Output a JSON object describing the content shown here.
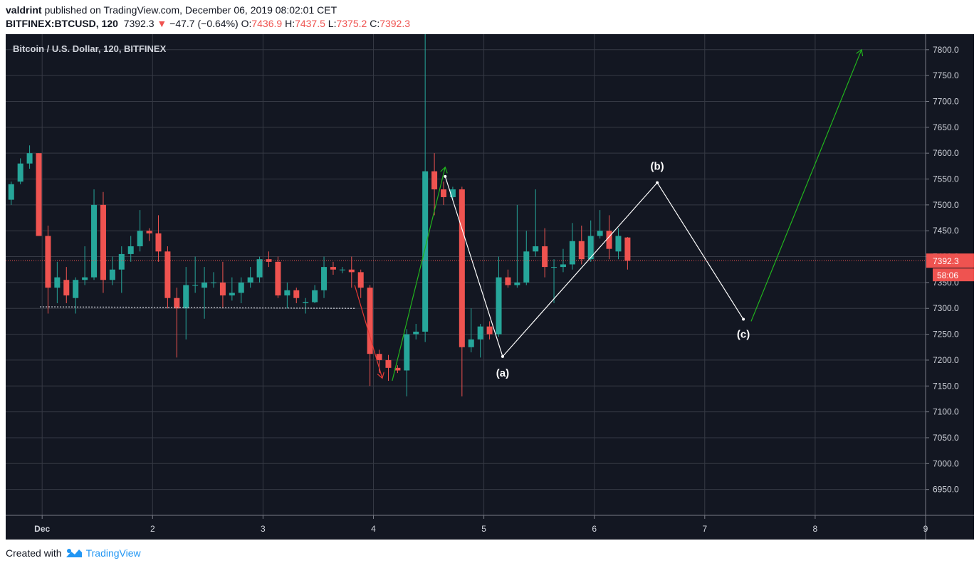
{
  "header": {
    "author": "valdrint",
    "published_text": "published on TradingView.com, December 06, 2019 08:02:01 CET",
    "symbol": "BITFINEX:BTCUSD, 120",
    "last": "7392.3",
    "change_arrow": "▼",
    "change": "−47.7 (−0.64%)",
    "o_label": "O:",
    "o": "7436.9",
    "h_label": "H:",
    "h": "7437.5",
    "l_label": "L:",
    "l": "7375.2",
    "c_label": "C:",
    "c": "7392.3"
  },
  "chart_data": {
    "type": "candlestick",
    "title": "Bitcoin / U.S. Dollar, 120, BITFINEX",
    "ylim": [
      6900,
      7830
    ],
    "xlim": [
      0.67,
      9.0
    ],
    "y_ticks": [
      "6950.0",
      "7000.0",
      "7050.0",
      "7100.0",
      "7150.0",
      "7200.0",
      "7250.0",
      "7300.0",
      "7350.0",
      "7400.0",
      "7450.0",
      "7500.0",
      "7550.0",
      "7600.0",
      "7650.0",
      "7700.0",
      "7750.0",
      "7800.0"
    ],
    "x_ticks": [
      {
        "x": 1,
        "label": "Dec"
      },
      {
        "x": 2,
        "label": "2"
      },
      {
        "x": 3,
        "label": "3"
      },
      {
        "x": 4,
        "label": "4"
      },
      {
        "x": 5,
        "label": "5"
      },
      {
        "x": 6,
        "label": "6"
      },
      {
        "x": 7,
        "label": "7"
      },
      {
        "x": 8,
        "label": "8"
      },
      {
        "x": 9,
        "label": "9"
      }
    ],
    "bar_interval_days": 0.0833,
    "first_bar_day": 0.72,
    "candles": [
      [
        7510,
        7540,
        7500,
        7545
      ],
      [
        7545,
        7580,
        7540,
        7590
      ],
      [
        7580,
        7600,
        7570,
        7615
      ],
      [
        7600,
        7440,
        7440,
        7600
      ],
      [
        7440,
        7340,
        7290,
        7460
      ],
      [
        7340,
        7360,
        7310,
        7390
      ],
      [
        7355,
        7325,
        7310,
        7380
      ],
      [
        7320,
        7355,
        7290,
        7360
      ],
      [
        7355,
        7360,
        7345,
        7420
      ],
      [
        7360,
        7500,
        7355,
        7530
      ],
      [
        7500,
        7355,
        7330,
        7525
      ],
      [
        7355,
        7375,
        7345,
        7400
      ],
      [
        7375,
        7405,
        7330,
        7420
      ],
      [
        7405,
        7420,
        7390,
        7440
      ],
      [
        7420,
        7450,
        7410,
        7490
      ],
      [
        7450,
        7445,
        7430,
        7455
      ],
      [
        7445,
        7410,
        7390,
        7480
      ],
      [
        7410,
        7320,
        7300,
        7420
      ],
      [
        7320,
        7300,
        7205,
        7340
      ],
      [
        7300,
        7345,
        7240,
        7380
      ],
      [
        7345,
        7345,
        7330,
        7400
      ],
      [
        7340,
        7350,
        7280,
        7380
      ],
      [
        7350,
        7350,
        7340,
        7370
      ],
      [
        7350,
        7325,
        7300,
        7390
      ],
      [
        7325,
        7330,
        7315,
        7360
      ],
      [
        7330,
        7350,
        7310,
        7360
      ],
      [
        7350,
        7360,
        7340,
        7380
      ],
      [
        7360,
        7395,
        7350,
        7400
      ],
      [
        7395,
        7390,
        7380,
        7410
      ],
      [
        7390,
        7325,
        7320,
        7400
      ],
      [
        7325,
        7335,
        7300,
        7350
      ],
      [
        7335,
        7320,
        7310,
        7340
      ],
      [
        7310,
        7312,
        7290,
        7320
      ],
      [
        7312,
        7335,
        7310,
        7345
      ],
      [
        7335,
        7380,
        7320,
        7400
      ],
      [
        7380,
        7375,
        7365,
        7390
      ],
      [
        7375,
        7375,
        7368,
        7380
      ],
      [
        7375,
        7370,
        7340,
        7400
      ],
      [
        7370,
        7340,
        7320,
        7375
      ],
      [
        7340,
        7212,
        7150,
        7345
      ],
      [
        7212,
        7200,
        7175,
        7220
      ],
      [
        7200,
        7185,
        7160,
        7210
      ],
      [
        7185,
        7180,
        7175,
        7190
      ],
      [
        7180,
        7250,
        7130,
        7260
      ],
      [
        7250,
        7255,
        7240,
        7270
      ],
      [
        7255,
        7565,
        7235,
        7830
      ],
      [
        7565,
        7530,
        7480,
        7600
      ],
      [
        7530,
        7515,
        7500,
        7545
      ],
      [
        7515,
        7530,
        7510,
        7535
      ],
      [
        7530,
        7225,
        7130,
        7535
      ],
      [
        7225,
        7240,
        7215,
        7300
      ],
      [
        7240,
        7265,
        7205,
        7270
      ],
      [
        7265,
        7250,
        7240,
        7275
      ],
      [
        7250,
        7360,
        7245,
        7400
      ],
      [
        7360,
        7345,
        7340,
        7375
      ],
      [
        7345,
        7350,
        7340,
        7500
      ],
      [
        7350,
        7410,
        7345,
        7450
      ],
      [
        7410,
        7420,
        7400,
        7530
      ],
      [
        7420,
        7380,
        7360,
        7455
      ],
      [
        7380,
        7380,
        7310,
        7395
      ],
      [
        7380,
        7385,
        7370,
        7415
      ],
      [
        7385,
        7430,
        7375,
        7465
      ],
      [
        7430,
        7395,
        7385,
        7460
      ],
      [
        7395,
        7440,
        7390,
        7470
      ],
      [
        7440,
        7450,
        7435,
        7490
      ],
      [
        7450,
        7415,
        7395,
        7480
      ],
      [
        7410,
        7440,
        7395,
        7455
      ],
      [
        7437,
        7392,
        7375,
        7438
      ]
    ],
    "last_price": 7392.3,
    "last_price_label": "7392.3",
    "countdown_label": "58:06",
    "annotations": [
      {
        "type": "line",
        "color": "#ffffff",
        "points": [
          [
            4.65,
            7555
          ],
          [
            5.17,
            7207
          ],
          [
            6.57,
            7543
          ],
          [
            7.35,
            7279
          ]
        ]
      },
      {
        "type": "arrow",
        "color": "#21b41d",
        "points": [
          [
            4.17,
            7160
          ],
          [
            4.65,
            7573
          ]
        ]
      },
      {
        "type": "arrow",
        "color": "#21b41d",
        "points": [
          [
            7.42,
            7275
          ],
          [
            8.42,
            7800
          ]
        ]
      },
      {
        "type": "arrow",
        "color": "#e53935",
        "points": [
          [
            3.83,
            7345
          ],
          [
            4.08,
            7165
          ]
        ]
      },
      {
        "type": "dotted",
        "color": "#b2b5be",
        "points": [
          [
            0.98,
            7303
          ],
          [
            3.83,
            7300
          ]
        ]
      }
    ],
    "wave_labels": [
      {
        "text": "(a)",
        "x": 5.17,
        "y": 7175
      },
      {
        "text": "(b)",
        "x": 6.57,
        "y": 7575
      },
      {
        "text": "(c)",
        "x": 7.35,
        "y": 7250
      }
    ],
    "colors": {
      "up": "#26a69a",
      "down": "#ef5350",
      "background": "#131722",
      "grid": "#363a45",
      "text": "#d1d4dc",
      "price_line": "#ef5350"
    }
  },
  "footer": {
    "created_with": "Created with",
    "brand": "TradingView"
  }
}
